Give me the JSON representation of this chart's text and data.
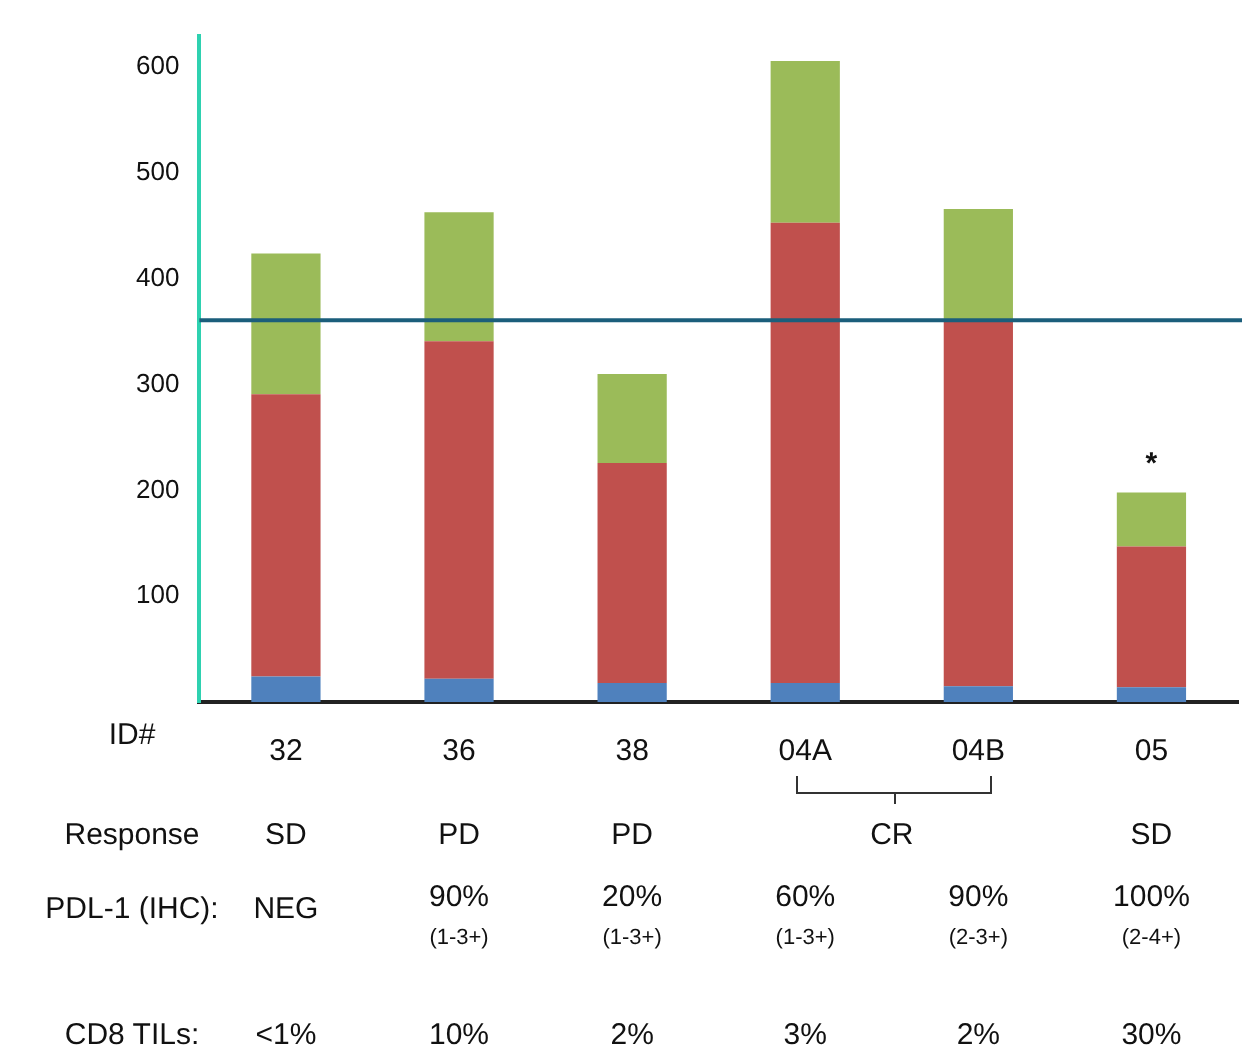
{
  "chart_data": {
    "type": "bar",
    "stacked": true,
    "categories": [
      "32",
      "36",
      "38",
      "04A",
      "04B",
      "05"
    ],
    "series": [
      {
        "color": "#4f81bd",
        "values": [
          24,
          22,
          18,
          18,
          15,
          14
        ]
      },
      {
        "color": "#c0504d",
        "values": [
          267,
          319,
          208,
          435,
          345,
          133
        ]
      },
      {
        "color": "#9bbb59",
        "values": [
          133,
          122,
          84,
          153,
          106,
          51
        ]
      }
    ],
    "ylim": [
      0,
      630
    ],
    "yticks": [
      100,
      200,
      300,
      400,
      500,
      600
    ],
    "grid": false,
    "legend": false,
    "ref_lines": [
      {
        "axis": "y",
        "value": 361,
        "color": "#1b5e7b"
      }
    ],
    "annotations": [
      {
        "text": "*",
        "x": "05",
        "y": 198
      },
      "ID#",
      "Response\tSD\tPD\tPD\tCR\t\tSD",
      "PDL-1 (IHC):\tNEG\t90%\n(1-3+)\t20%\n(1-3+)\t60%\n(1-3+)\t90%\n(2-3+)\t100%\n(2-4+)",
      "CD8 TILs:\t<1%\t10%\t2%\t3%\t2%\t30%"
    ]
  }
}
